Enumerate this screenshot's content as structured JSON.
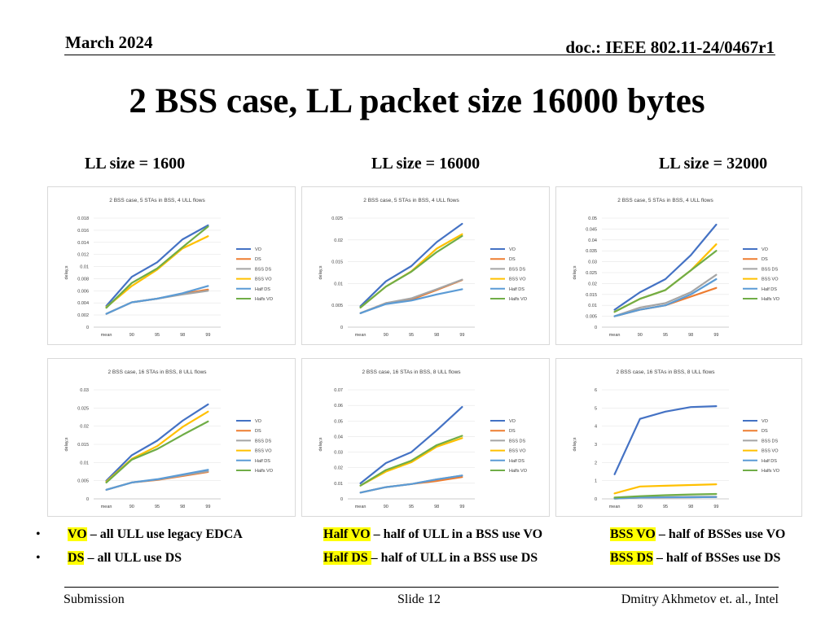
{
  "header": {
    "date": "March 2024",
    "doc": "doc.: IEEE 802.11-24/0467r1"
  },
  "title": "2 BSS case, LL packet size 16000 bytes",
  "column_labels": [
    "LL size = 1600",
    "LL size = 16000",
    "LL size = 32000"
  ],
  "colors": {
    "VO": "#4472C4",
    "DS": "#ED7D31",
    "BSS DS": "#A5A5A5",
    "BSS VO": "#FFC000",
    "Half DS": "#5B9BD5",
    "Halfs VO": "#70AD47"
  },
  "chart_data": [
    {
      "type": "line",
      "title": "2 BSS case, 5 STAs in BSS, 4 ULL flows",
      "ylabel": "delay,s",
      "categories": [
        "mean",
        "90",
        "95",
        "98",
        "99"
      ],
      "yticks": [
        "0",
        "0.002",
        "0.004",
        "0.006",
        "0.008",
        "0.01",
        "0.012",
        "0.014",
        "0.016",
        "0.018"
      ],
      "ylim": [
        0,
        0.018
      ],
      "legend": "right",
      "series": [
        {
          "name": "VO",
          "values": [
            0.0035,
            0.0083,
            0.0107,
            0.0145,
            0.0168
          ]
        },
        {
          "name": "DS",
          "values": [
            0.0022,
            0.0041,
            0.0047,
            0.0055,
            0.0062
          ]
        },
        {
          "name": "BSS DS",
          "values": [
            0.0022,
            0.0041,
            0.0047,
            0.0054,
            0.006
          ]
        },
        {
          "name": "BSS VO",
          "values": [
            0.0033,
            0.0068,
            0.0095,
            0.013,
            0.015
          ]
        },
        {
          "name": "Half DS",
          "values": [
            0.0022,
            0.0041,
            0.0047,
            0.0056,
            0.0068
          ]
        },
        {
          "name": "Halfs VO",
          "values": [
            0.0032,
            0.0073,
            0.0097,
            0.0132,
            0.0166
          ]
        }
      ]
    },
    {
      "type": "line",
      "title": "2 BSS case, 5 STAs in BSS, 4 ULL flows",
      "ylabel": "delay,s",
      "categories": [
        "mean",
        "90",
        "95",
        "98",
        "99"
      ],
      "yticks": [
        "0",
        "0.005",
        "0.01",
        "0.015",
        "0.02",
        "0.025"
      ],
      "ylim": [
        0,
        0.025
      ],
      "legend": "right",
      "series": [
        {
          "name": "VO",
          "values": [
            0.0048,
            0.0105,
            0.014,
            0.0195,
            0.0237
          ]
        },
        {
          "name": "DS",
          "values": [
            0.0032,
            0.0055,
            0.0063,
            0.0085,
            0.0108
          ]
        },
        {
          "name": "BSS DS",
          "values": [
            0.0032,
            0.0055,
            0.0066,
            0.0087,
            0.0109
          ]
        },
        {
          "name": "BSS VO",
          "values": [
            0.0045,
            0.0093,
            0.0128,
            0.018,
            0.0213
          ]
        },
        {
          "name": "Half DS",
          "values": [
            0.0032,
            0.0053,
            0.0061,
            0.0075,
            0.0087
          ]
        },
        {
          "name": "Halfs VO",
          "values": [
            0.0045,
            0.0093,
            0.0127,
            0.0172,
            0.0209
          ]
        }
      ]
    },
    {
      "type": "line",
      "title": "2 BSS case, 5 STAs in BSS, 4 ULL flows",
      "ylabel": "delay,s",
      "categories": [
        "mean",
        "90",
        "95",
        "98",
        "99"
      ],
      "yticks": [
        "0",
        "0.005",
        "0.01",
        "0.015",
        "0.02",
        "0.025",
        "0.03",
        "0.035",
        "0.04",
        "0.045",
        "0.05"
      ],
      "ylim": [
        0,
        0.05
      ],
      "legend": "right",
      "series": [
        {
          "name": "VO",
          "values": [
            0.008,
            0.016,
            0.022,
            0.033,
            0.047
          ]
        },
        {
          "name": "DS",
          "values": [
            0.005,
            0.008,
            0.01,
            0.014,
            0.018
          ]
        },
        {
          "name": "BSS DS",
          "values": [
            0.005,
            0.009,
            0.011,
            0.016,
            0.024
          ]
        },
        {
          "name": "BSS VO",
          "values": [
            0.007,
            0.013,
            0.017,
            0.026,
            0.038
          ]
        },
        {
          "name": "Half DS",
          "values": [
            0.005,
            0.008,
            0.01,
            0.015,
            0.022
          ]
        },
        {
          "name": "Halfs VO",
          "values": [
            0.007,
            0.013,
            0.017,
            0.026,
            0.035
          ]
        }
      ]
    },
    {
      "type": "line",
      "title": "2 BSS case, 16 STAs in BSS, 8 ULL flows",
      "ylabel": "delay,s",
      "categories": [
        "mean",
        "90",
        "95",
        "98",
        "99"
      ],
      "yticks": [
        "0",
        "0.005",
        "0.01",
        "0.015",
        "0.02",
        "0.025",
        "0.03"
      ],
      "ylim": [
        0,
        0.03
      ],
      "legend": "right",
      "series": [
        {
          "name": "VO",
          "values": [
            0.005,
            0.012,
            0.016,
            0.0215,
            0.026
          ]
        },
        {
          "name": "DS",
          "values": [
            0.0025,
            0.0045,
            0.0052,
            0.0063,
            0.0074
          ]
        },
        {
          "name": "BSS DS",
          "values": [
            0.0025,
            0.0045,
            0.0053,
            0.0065,
            0.0076
          ]
        },
        {
          "name": "BSS VO",
          "values": [
            0.0047,
            0.011,
            0.0145,
            0.0198,
            0.024
          ]
        },
        {
          "name": "Half DS",
          "values": [
            0.0025,
            0.0045,
            0.0054,
            0.0067,
            0.008
          ]
        },
        {
          "name": "Halfs VO",
          "values": [
            0.0045,
            0.0108,
            0.0137,
            0.0176,
            0.0213
          ]
        }
      ]
    },
    {
      "type": "line",
      "title": "2 BSS case, 16 STAs in BSS, 8 ULL flows",
      "ylabel": "delay,s",
      "categories": [
        "mean",
        "90",
        "95",
        "98",
        "99"
      ],
      "yticks": [
        "0",
        "0.01",
        "0.02",
        "0.03",
        "0.04",
        "0.05",
        "0.06",
        "0.07"
      ],
      "ylim": [
        0,
        0.07
      ],
      "legend": "right",
      "series": [
        {
          "name": "VO",
          "values": [
            0.01,
            0.023,
            0.03,
            0.044,
            0.059
          ]
        },
        {
          "name": "DS",
          "values": [
            0.004,
            0.0075,
            0.0095,
            0.0115,
            0.014
          ]
        },
        {
          "name": "BSS DS",
          "values": [
            0.004,
            0.0075,
            0.0095,
            0.0125,
            0.015
          ]
        },
        {
          "name": "BSS VO",
          "values": [
            0.0085,
            0.0175,
            0.0235,
            0.0335,
            0.039
          ]
        },
        {
          "name": "Half DS",
          "values": [
            0.004,
            0.0075,
            0.0095,
            0.0125,
            0.015
          ]
        },
        {
          "name": "Halfs VO",
          "values": [
            0.0085,
            0.0185,
            0.0245,
            0.0345,
            0.0405
          ]
        }
      ]
    },
    {
      "type": "line",
      "title": "2 BSS case, 16 STAs in BSS, 8 ULL flows",
      "ylabel": "delay,s",
      "categories": [
        "mean",
        "90",
        "95",
        "98",
        "99"
      ],
      "yticks": [
        "0",
        "1",
        "2",
        "3",
        "4",
        "5",
        "6"
      ],
      "ylim": [
        0,
        6
      ],
      "legend": "right",
      "series": [
        {
          "name": "VO",
          "values": [
            1.35,
            4.4,
            4.8,
            5.05,
            5.1
          ]
        },
        {
          "name": "DS",
          "values": [
            0.02,
            0.07,
            0.08,
            0.09,
            0.1
          ]
        },
        {
          "name": "BSS DS",
          "values": [
            0.03,
            0.09,
            0.1,
            0.11,
            0.12
          ]
        },
        {
          "name": "BSS VO",
          "values": [
            0.3,
            0.68,
            0.72,
            0.76,
            0.8
          ]
        },
        {
          "name": "Half DS",
          "values": [
            0.02,
            0.07,
            0.08,
            0.09,
            0.1
          ]
        },
        {
          "name": "Halfs VO",
          "values": [
            0.07,
            0.15,
            0.2,
            0.24,
            0.27
          ]
        }
      ]
    }
  ],
  "notes": [
    [
      {
        "key": "VO",
        "text": " – all ULL use legacy EDCA"
      },
      {
        "key": "Half VO",
        "text": " – half of ULL in a BSS use VO"
      },
      {
        "key": "BSS VO",
        "text": " – half of BSSes use VO"
      }
    ],
    [
      {
        "key": "DS",
        "text": " – all ULL use DS"
      },
      {
        "key": "Half DS ",
        "text": "– half of ULL in a BSS use DS"
      },
      {
        "key": "BSS DS",
        "text": " – half of BSSes use DS"
      }
    ]
  ],
  "bullet_glyph": "•",
  "footer": {
    "left": "Submission",
    "center": "Slide 12",
    "right": "Dmitry Akhmetov et. al., Intel"
  }
}
